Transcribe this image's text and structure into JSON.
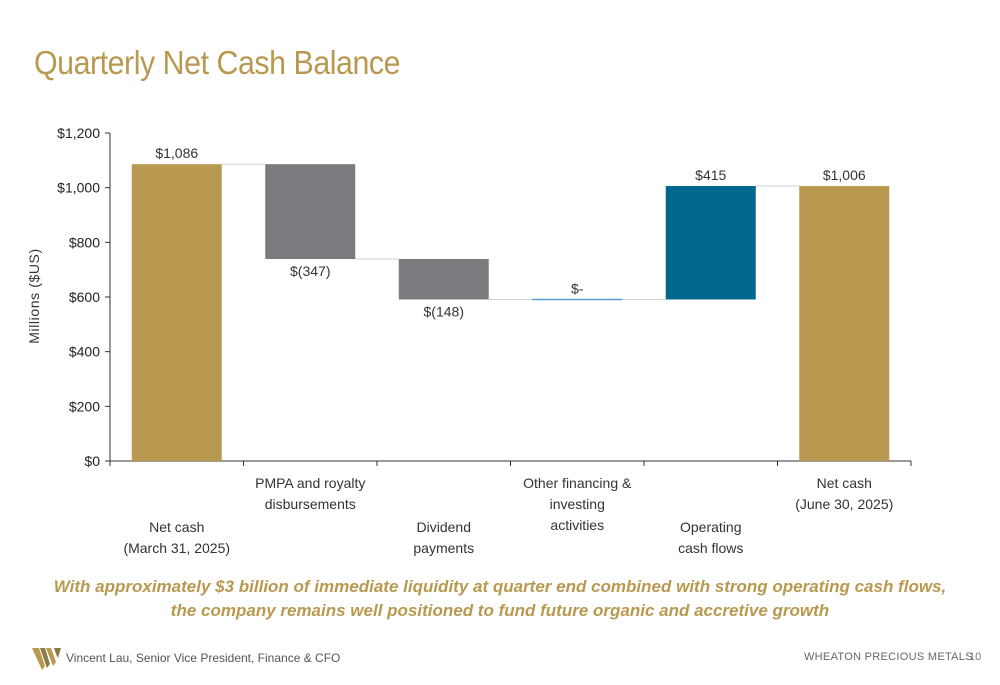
{
  "title": "Quarterly Net Cash Balance",
  "chart_data": {
    "type": "bar",
    "subtype": "waterfall",
    "ylabel": "Millions ($US)",
    "ylim": [
      0,
      1200
    ],
    "yticks": [
      0,
      200,
      400,
      600,
      800,
      1000,
      1200
    ],
    "ytick_labels": [
      "$0",
      "$200",
      "$400",
      "$600",
      "$800",
      "$1,000",
      "$1,200"
    ],
    "grid": false,
    "steps": [
      {
        "category": [
          "Net cash",
          "(March 31, 2025)"
        ],
        "start": 0,
        "end": 1086,
        "value": 1086,
        "label": "$1,086",
        "kind": "total"
      },
      {
        "category": [
          "PMPA and royalty",
          "disbursements"
        ],
        "start": 1086,
        "end": 739,
        "value": -347,
        "label": "$(347)",
        "kind": "decrease"
      },
      {
        "category": [
          "Dividend",
          "payments"
        ],
        "start": 739,
        "end": 591,
        "value": -148,
        "label": "$(148)",
        "kind": "decrease"
      },
      {
        "category": [
          "Other financing &",
          "investing",
          "activities"
        ],
        "start": 591,
        "end": 591,
        "value": 0,
        "label": "$-",
        "kind": "other"
      },
      {
        "category": [
          "Operating",
          "cash flows"
        ],
        "start": 591,
        "end": 1006,
        "value": 415,
        "label": "$415",
        "kind": "increase"
      },
      {
        "category": [
          "Net cash",
          "(June 30, 2025)"
        ],
        "start": 0,
        "end": 1006,
        "value": 1006,
        "label": "$1,006",
        "kind": "total"
      }
    ],
    "colors": {
      "total": "#b8994f",
      "decrease": "#7a7b7e",
      "increase": "#00678d",
      "other": "#5b9bd5"
    }
  },
  "caption": {
    "line1": "With approximately $3 billion of immediate liquidity at quarter end combined with strong operating cash flows,",
    "line2": "the company remains well positioned to fund future organic and accretive growth"
  },
  "footer": {
    "presenter": "Vincent Lau, Senior Vice President, Finance & CFO",
    "brand": "WHEATON  PRECIOUS METALS",
    "page": "10"
  },
  "logo_icon": "wheaton-w-logo-icon"
}
